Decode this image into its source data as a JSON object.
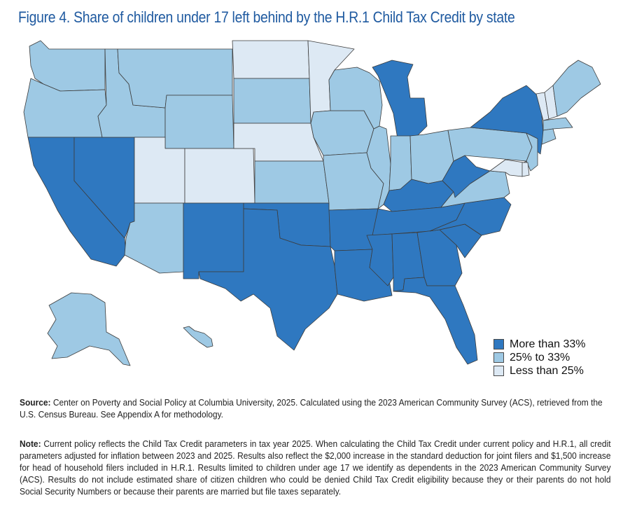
{
  "title": "Figure 4. Share of children under 17 left behind by the H.R.1 Child Tax Credit by state",
  "colors": {
    "high": "#2f78c0",
    "mid": "#9ec9e4",
    "low": "#dde9f4",
    "title": "#1f5aa0"
  },
  "legend": [
    {
      "key": "high",
      "label": "More than 33%"
    },
    {
      "key": "mid",
      "label": "25% to 33%"
    },
    {
      "key": "low",
      "label": "Less than 25%"
    }
  ],
  "state_categories": {
    "WA": "mid",
    "OR": "mid",
    "CA": "high",
    "NV": "high",
    "ID": "mid",
    "MT": "mid",
    "WY": "mid",
    "UT": "low",
    "CO": "low",
    "AZ": "mid",
    "NM": "high",
    "ND": "low",
    "SD": "mid",
    "NE": "low",
    "KS": "mid",
    "OK": "high",
    "TX": "high",
    "MN": "low",
    "IA": "mid",
    "MO": "mid",
    "AR": "high",
    "LA": "high",
    "WI": "mid",
    "IL": "mid",
    "MI": "high",
    "IN": "mid",
    "OH": "mid",
    "KY": "high",
    "TN": "high",
    "MS": "high",
    "AL": "high",
    "GA": "high",
    "FL": "high",
    "SC": "high",
    "NC": "high",
    "VA": "mid",
    "WV": "high",
    "PA": "mid",
    "NY": "high",
    "VT": "low",
    "NH": "low",
    "ME": "mid",
    "MA": "mid",
    "CT": "mid",
    "NJ": "mid",
    "DE": "low",
    "MD": "low",
    "AK": "mid",
    "HI": "mid"
  },
  "source": {
    "label": "Source:",
    "text": " Center on Poverty and Social Policy at Columbia University, 2025. Calculated using the 2023 American Community Survey (ACS), retrieved from the U.S. Census Bureau. See Appendix A for methodology."
  },
  "note": {
    "label": "Note:",
    "text": " Current policy reflects the Child Tax Credit parameters in tax year 2025. When calculating the Child Tax Credit under current policy and H.R.1, all credit parameters adjusted for inflation between 2023 and 2025.  Results also reflect the $2,000 increase in the standard deduction for joint filers and $1,500 increase for head of household filers included in H.R.1. Results limited to children under age 17 we identify as dependents in the 2023 American Community Survey (ACS). Results do not include estimated share of citizen children who could be denied Child Tax Credit eligibility because they or their parents do not hold Social Security Numbers or because their parents are married but file taxes separately."
  }
}
